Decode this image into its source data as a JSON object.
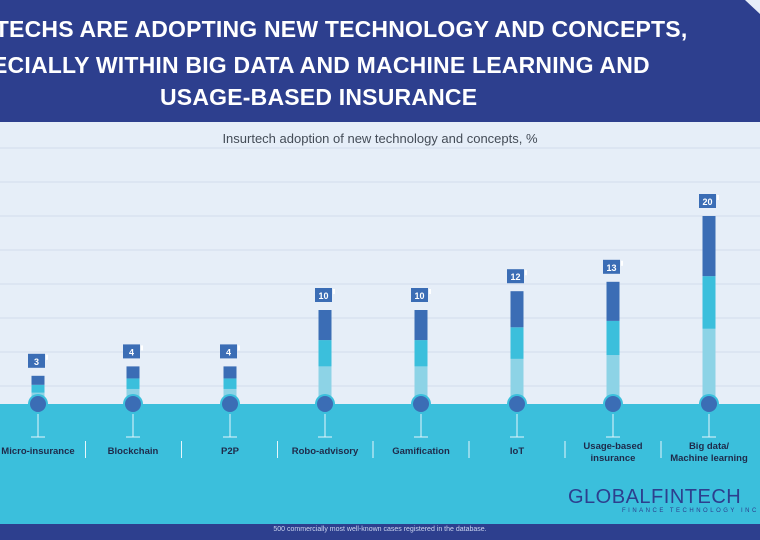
{
  "header": {
    "line1": "RTECHS ARE ADOPTING NEW TECHNOLOGY AND CONCEPTS,",
    "line2": "ECIALLY WITHIN BIG DATA AND MACHINE LEARNING AND",
    "line3": "USAGE-BASED INSURANCE"
  },
  "colors": {
    "banner": "#2d3f8e",
    "background": "#e6eef8",
    "ground": "#3bbfdc",
    "seg_light": "#8dd3e6",
    "seg_mid": "#3bbfdc",
    "seg_dark": "#3b6db5",
    "label_box": "#3b6db5"
  },
  "chart_data": {
    "type": "bar",
    "title": "Insurtech adoption of new technology and concepts, %",
    "categories": [
      "Micro-insurance",
      "Blockchain",
      "P2P",
      "Robo-advisory",
      "Gamification",
      "IoT",
      "Usage-based insurance",
      "Big data/ Machine learning"
    ],
    "category_lines": [
      [
        "Micro-insurance"
      ],
      [
        "Blockchain"
      ],
      [
        "P2P"
      ],
      [
        "Robo-advisory"
      ],
      [
        "Gamification"
      ],
      [
        "IoT"
      ],
      [
        "Usage-based",
        "insurance"
      ],
      [
        "Big data/",
        "Machine learning"
      ]
    ],
    "values": [
      3,
      4,
      4,
      10,
      10,
      12,
      13,
      20
    ],
    "ylim": [
      0,
      20
    ],
    "grid": true
  },
  "footer": {
    "note": "500 commercially most well-known cases registered in the database."
  },
  "logo": {
    "text": "GLOBALFINTECH",
    "subtitle": "FINANCE TECHNOLOGY INC"
  }
}
